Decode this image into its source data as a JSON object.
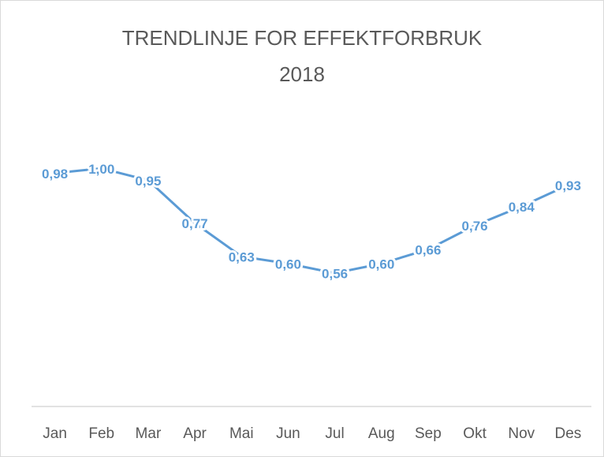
{
  "chart_data": {
    "type": "line",
    "title": "TRENDLINJE FOR EFFEKTFORBRUK",
    "subtitle": "2018",
    "categories": [
      "Jan",
      "Feb",
      "Mar",
      "Apr",
      "Mai",
      "Jun",
      "Jul",
      "Aug",
      "Sep",
      "Okt",
      "Nov",
      "Des"
    ],
    "values": [
      0.98,
      1.0,
      0.95,
      0.77,
      0.63,
      0.6,
      0.56,
      0.6,
      0.66,
      0.76,
      0.84,
      0.93
    ],
    "value_labels": [
      "0,98",
      "1,00",
      "0,95",
      "0,77",
      "0,63",
      "0,60",
      "0,56",
      "0,60",
      "0,66",
      "0,76",
      "0,84",
      "0,93"
    ],
    "color": "#5b9bd5",
    "ylim": [
      0,
      1.2
    ]
  }
}
